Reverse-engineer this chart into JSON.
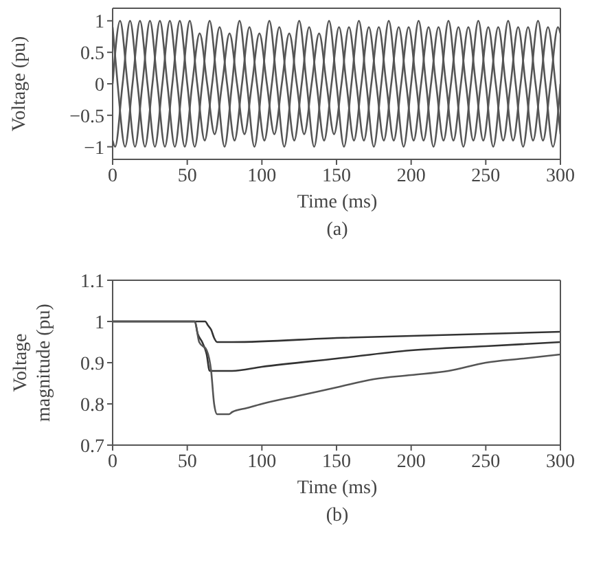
{
  "chart_data": [
    {
      "type": "line",
      "xlabel": "Time (ms)",
      "ylabel": "Voltage (pu)",
      "annotations": [
        "(a)"
      ],
      "xlim": [
        0,
        300
      ],
      "xticks": [
        0,
        50,
        100,
        150,
        200,
        250,
        300
      ],
      "ylim": [
        -1.2,
        1.2
      ],
      "yticks": [
        {
          "value": -1,
          "label": "−1"
        },
        {
          "value": -0.5,
          "label": "−0.5"
        },
        0,
        0.5,
        1
      ],
      "line_style": "solid",
      "series": [
        {
          "color": "#555555",
          "x": [
            0,
            5,
            10,
            15,
            20,
            25,
            30,
            35,
            40,
            45,
            50,
            55,
            60,
            65,
            70,
            75,
            80,
            85,
            90,
            95,
            100,
            105,
            110,
            115,
            120,
            125,
            130,
            135,
            140,
            145,
            150,
            155,
            160,
            165,
            170,
            175,
            180,
            185,
            190,
            195,
            200,
            205,
            210,
            215,
            220,
            225,
            230,
            235,
            240,
            245,
            250,
            255,
            260,
            265,
            270,
            275,
            280,
            285,
            290,
            295,
            300
          ],
          "values": [
            0,
            1,
            0,
            -1,
            0,
            1,
            0,
            -1,
            0,
            1,
            0,
            -1,
            0,
            1,
            0,
            -1,
            0,
            1,
            0,
            -1,
            0,
            1,
            0,
            -1,
            0,
            1,
            0,
            -1,
            0,
            1,
            0,
            -1,
            0,
            1,
            0,
            -1,
            0,
            1,
            0,
            -1,
            0,
            1,
            0,
            -1,
            0,
            1,
            0,
            -1,
            0,
            1,
            0,
            -1,
            0,
            1,
            0,
            -1,
            0,
            1,
            0,
            -1,
            0
          ]
        },
        {
          "color": "#555555",
          "x": [
            0,
            1.67,
            6.67,
            11.67,
            16.67,
            21.67,
            26.67,
            31.67,
            36.67,
            41.67,
            46.67,
            51.67,
            56.67,
            61.67,
            66.67,
            71.67,
            76.67,
            81.67,
            86.67,
            91.67,
            96.67,
            101.67,
            106.67,
            111.67,
            116.67,
            121.67,
            126.67,
            131.67,
            136.67,
            141.67,
            146.67,
            151.67,
            156.67,
            161.67,
            166.67,
            171.67,
            176.67,
            181.67,
            186.67,
            191.67,
            196.67,
            201.67,
            206.67,
            211.67,
            216.67,
            221.67,
            226.67,
            231.67,
            236.67,
            241.67,
            246.67,
            251.67,
            256.67,
            261.67,
            266.67,
            271.67,
            276.67,
            281.67,
            286.67,
            291.67,
            296.67,
            300
          ],
          "values": [
            -0.9,
            -1,
            0,
            1,
            0,
            -1,
            0,
            1,
            0,
            -1,
            0,
            1,
            0,
            -0.9,
            0,
            0.9,
            0,
            -0.9,
            0,
            0.9,
            0,
            -0.9,
            0,
            0.9,
            0,
            -0.9,
            0,
            0.9,
            0,
            -0.9,
            0,
            0.9,
            0,
            -0.9,
            0,
            0.9,
            0,
            -0.9,
            0,
            0.9,
            0,
            -0.9,
            0,
            0.9,
            0,
            -0.9,
            0,
            0.9,
            0,
            -0.9,
            0,
            0.9,
            0,
            -0.9,
            0,
            0.9,
            0,
            -0.9,
            0,
            0.9,
            0,
            -0.8
          ]
        },
        {
          "color": "#555555",
          "x": [
            0,
            3.33,
            8.33,
            13.33,
            18.33,
            23.33,
            28.33,
            33.33,
            38.33,
            43.33,
            48.33,
            53.33,
            58.33,
            63.33,
            68.33,
            73.33,
            78.33,
            83.33,
            88.33,
            93.33,
            98.33,
            103.33,
            108.33,
            113.33,
            118.33,
            123.33,
            128.33,
            133.33,
            138.33,
            143.33,
            148.33,
            153.33,
            158.33,
            163.33,
            168.33,
            173.33,
            178.33,
            183.33,
            188.33,
            193.33,
            198.33,
            203.33,
            208.33,
            213.33,
            218.33,
            223.33,
            228.33,
            233.33,
            238.33,
            243.33,
            248.33,
            253.33,
            258.33,
            263.33,
            268.33,
            273.33,
            278.33,
            283.33,
            288.33,
            293.33,
            298.33,
            300
          ],
          "values": [
            0.9,
            0,
            -1,
            0,
            1,
            0,
            -1,
            0,
            1,
            0,
            -1,
            0,
            0.8,
            0,
            -0.8,
            0,
            0.8,
            0,
            -0.8,
            0,
            0.8,
            0,
            -0.8,
            0,
            0.8,
            0,
            -0.8,
            0,
            0.8,
            0,
            -0.8,
            0,
            0.9,
            0,
            -0.9,
            0,
            0.9,
            0,
            -0.9,
            0,
            0.9,
            0,
            -0.9,
            0,
            0.9,
            0,
            -0.9,
            0,
            0.9,
            0,
            -0.9,
            0,
            0.9,
            0,
            -0.9,
            0,
            0.9,
            0,
            -0.9,
            0,
            0.9,
            0.8
          ]
        }
      ]
    },
    {
      "type": "line",
      "xlabel": "Time (ms)",
      "ylabel": "Voltage magnitude (pu)",
      "annotations": [
        "(b)"
      ],
      "xlim": [
        0,
        300
      ],
      "xticks": [
        0,
        50,
        100,
        150,
        200,
        250,
        300
      ],
      "ylim": [
        0.7,
        1.1
      ],
      "yticks": [
        0.7,
        0.8,
        0.9,
        1,
        1.1
      ],
      "line_style": "solid",
      "series": [
        {
          "color": "#333333",
          "x": [
            0,
            62,
            64,
            66,
            68,
            70,
            80,
            150,
            300
          ],
          "values": [
            1,
            1,
            0.99,
            0.98,
            0.96,
            0.95,
            0.95,
            0.96,
            0.975
          ]
        },
        {
          "color": "#333333",
          "x": [
            0,
            55,
            57,
            60,
            63,
            65,
            80,
            100,
            150,
            200,
            250,
            300
          ],
          "values": [
            1,
            1,
            0.97,
            0.95,
            0.92,
            0.88,
            0.88,
            0.89,
            0.91,
            0.93,
            0.94,
            0.95
          ]
        },
        {
          "color": "#555555",
          "x": [
            0,
            55,
            58,
            63,
            66,
            68,
            70,
            78,
            80,
            90,
            100,
            125,
            150,
            175,
            200,
            225,
            250,
            275,
            300
          ],
          "values": [
            1,
            1,
            0.95,
            0.93,
            0.88,
            0.8,
            0.775,
            0.775,
            0.78,
            0.79,
            0.8,
            0.82,
            0.84,
            0.86,
            0.87,
            0.88,
            0.9,
            0.91,
            0.92
          ]
        }
      ]
    }
  ]
}
